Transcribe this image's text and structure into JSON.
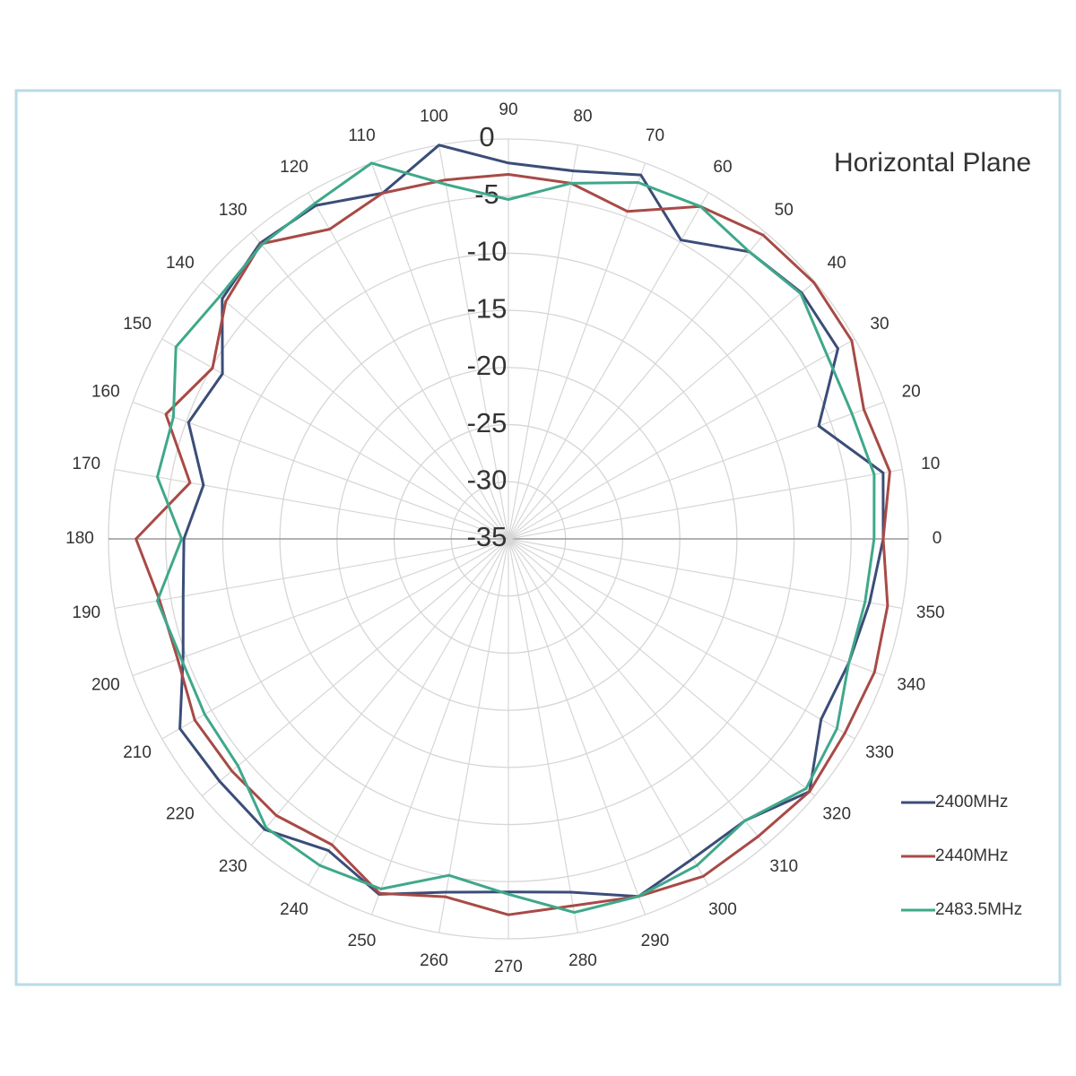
{
  "chart_data": {
    "type": "polar",
    "title": "Horizontal Plane",
    "categories": [
      0,
      10,
      20,
      30,
      40,
      50,
      60,
      70,
      80,
      90,
      100,
      110,
      120,
      130,
      140,
      150,
      160,
      170,
      180,
      190,
      200,
      210,
      220,
      230,
      240,
      250,
      260,
      270,
      280,
      290,
      300,
      310,
      320,
      330,
      340,
      350
    ],
    "rlim": [
      -35,
      0
    ],
    "rticks": [
      0,
      -5,
      -10,
      -15,
      -20,
      -25,
      -30,
      -35
    ],
    "grid": true,
    "legend": "lower right",
    "series": [
      {
        "name": "2400MHz",
        "color": "#3b4d78",
        "values": [
          -2.2,
          -1.7,
          -6.1,
          -1.7,
          -1.5,
          -2.2,
          -4.8,
          -1.1,
          -2.3,
          -2.1,
          0,
          -2.8,
          -1.3,
          -1.2,
          -2.3,
          -6.1,
          -5.2,
          -7.9,
          -6.6,
          -6.1,
          -4.7,
          -1.8,
          -2,
          -1.8,
          -3.5,
          -1.9,
          -3.6,
          -4.1,
          -3.6,
          -1.7,
          -2.7,
          -2.8,
          -0.6,
          -3.4,
          -3.3,
          -2.9
        ]
      },
      {
        "name": "2440MHz",
        "color": "#a84a46",
        "values": [
          -2.2,
          -1.1,
          -1.9,
          -0.3,
          -0.1,
          -0.3,
          -1.4,
          -4.5,
          -3.4,
          -3.1,
          -3.1,
          -2.8,
          -3.7,
          -1.3,
          -2.7,
          -5.1,
          -3.1,
          -6.7,
          -2.4,
          -4,
          -4.2,
          -3.3,
          -3.4,
          -3.4,
          -4.1,
          -2,
          -3.2,
          -2.1,
          -2.4,
          -1.7,
          -0.9,
          -1,
          -0.6,
          -1,
          -0.9,
          -1.3
        ]
      },
      {
        "name": "2483.5MHz",
        "color": "#3fa88a",
        "values": [
          -3,
          -2.5,
          -3,
          -2.8,
          -1.6,
          -2.2,
          -1.4,
          -1.8,
          -3.4,
          -5.3,
          -3.5,
          0,
          -1.1,
          -1.4,
          -2,
          -1.4,
          -3.8,
          -3.8,
          -6.4,
          -3.8,
          -4.5,
          -4.3,
          -4.1,
          -2,
          -2,
          -2.4,
          -5.1,
          -3.9,
          -1.8,
          -1.7,
          -2,
          -2.8,
          -1,
          -1.8,
          -3.3,
          -3.3
        ]
      }
    ]
  }
}
